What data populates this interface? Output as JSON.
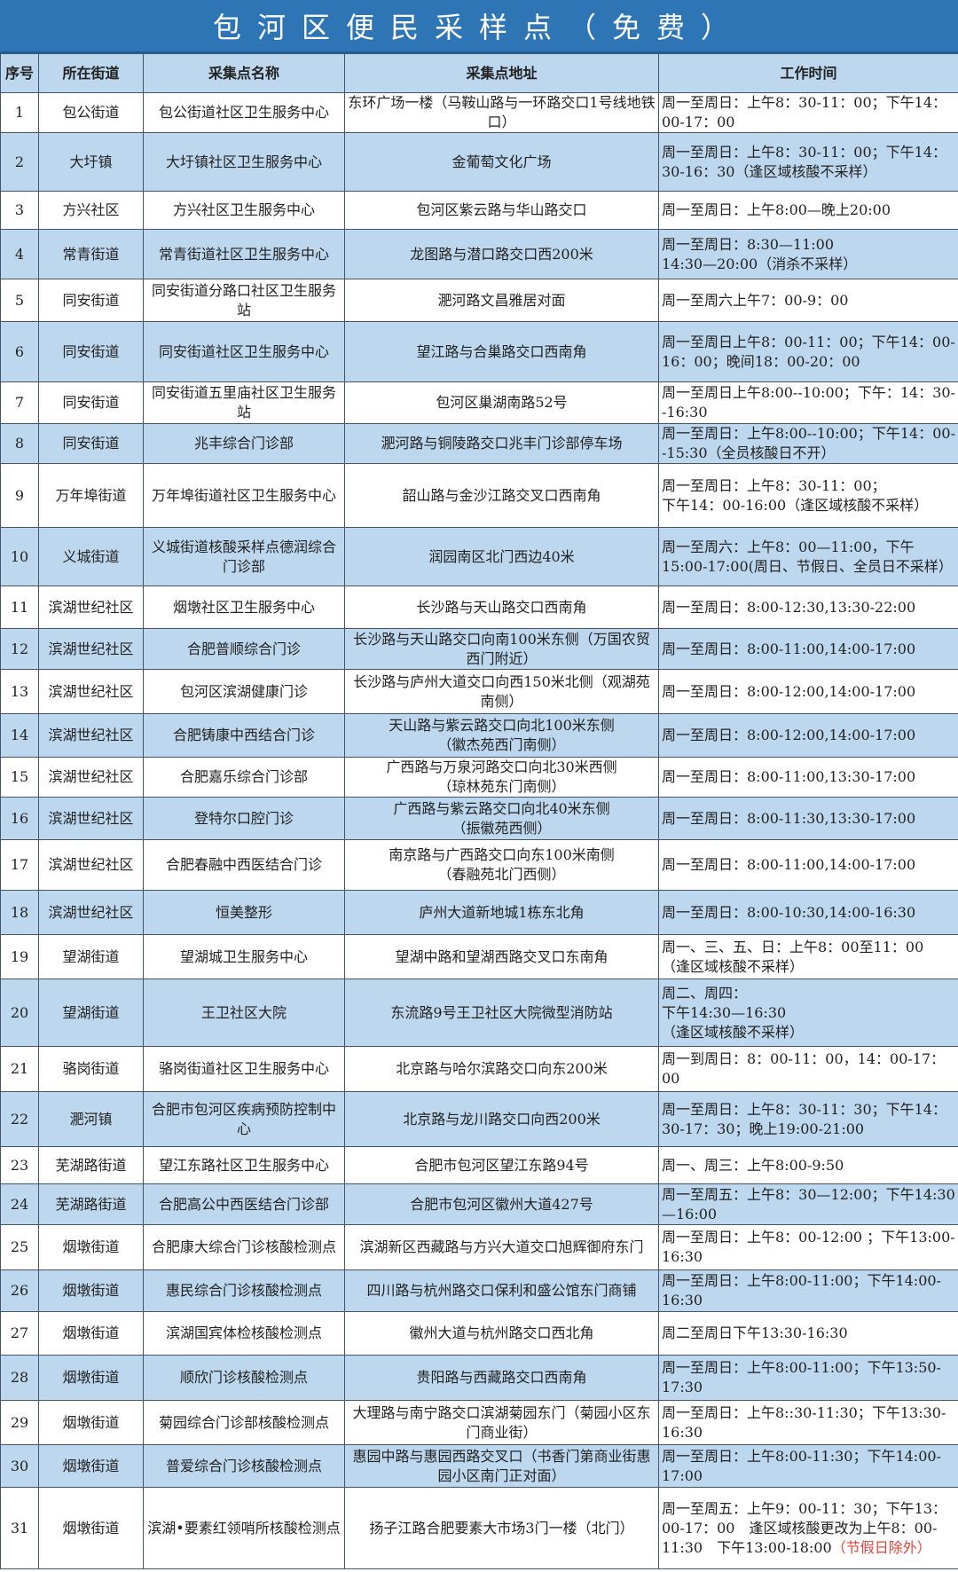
{
  "title": "包河区便民采样点（免费）",
  "colors": {
    "title_bg": "#2e75b6",
    "row_alt": "#bdd7ee",
    "note_red": "#e0443c"
  },
  "headers": [
    "序号",
    "所在街道",
    "采集点名称",
    "采集点地址",
    "工作时间"
  ],
  "rows": [
    {
      "no": "1",
      "street": "包公街道",
      "name": "包公街道社区卫生服务中心",
      "address": "东环广场一楼（马鞍山路与一环路交口1号线地铁口）",
      "time": "周一至周日：上午8：30-11：00；下午14：00-17：00"
    },
    {
      "no": "2",
      "street": "大圩镇",
      "name": "大圩镇社区卫生服务中心",
      "address": "金葡萄文化广场",
      "time": "周一至周日：上午8：30-11：00；下午14：30-16：30（逢区域核酸不采样）"
    },
    {
      "no": "3",
      "street": "方兴社区",
      "name": "方兴社区卫生服务中心",
      "address": "包河区紫云路与华山路交口",
      "time": "周一至周日：上午8:00—晚上20:00"
    },
    {
      "no": "4",
      "street": "常青街道",
      "name": "常青街道社区卫生服务中心",
      "address": "龙图路与潜口路交口西200米",
      "time": "周一至周日：8:30—11:00\n14:30—20:00（消杀不采样）"
    },
    {
      "no": "5",
      "street": "同安街道",
      "name": "同安街道分路口社区卫生服务站",
      "address": "淝河路文昌雅居对面",
      "time": "周一至周六上午7：00-9：00"
    },
    {
      "no": "6",
      "street": "同安街道",
      "name": "同安街道社区卫生服务中心",
      "address": "望江路与合巢路交口西南角",
      "time": "周一至周日上午8：00-11：00；下午14：00-16：00；晚间18：00-20：00"
    },
    {
      "no": "7",
      "street": "同安街道",
      "name": "同安街道五里庙社区卫生服务站",
      "address": "包河区巢湖南路52号",
      "time": "周一至周日上午8:00--10:00；下午：14：30--16:30"
    },
    {
      "no": "8",
      "street": "同安街道",
      "name": "兆丰综合门诊部",
      "address": "淝河路与铜陵路交口兆丰门诊部停车场",
      "time": "周一至周日：上午8:00--10:00；下午14：00--15:30（全员核酸日不开）"
    },
    {
      "no": "9",
      "street": "万年埠街道",
      "name": "万年埠街道社区卫生服务中心",
      "address": "韶山路与金沙江路交叉口西南角",
      "time": "周一至周日：上午8：30-11：00；\n下午14：00-16:00（逢区域核酸不采样）"
    },
    {
      "no": "10",
      "street": "义城街道",
      "name": "义城街道核酸采样点德润综合门诊部",
      "address": "润园南区北门西边40米",
      "time": "周一至周六：上午8：00—11:00，下午15:00-17:00(周日、节假日、全员日不采样）"
    },
    {
      "no": "11",
      "street": "滨湖世纪社区",
      "name": "烟墩社区卫生服务中心",
      "address": "长沙路与天山路交口西南角",
      "time": "周一至周日：8:00-12:30,13:30-22:00"
    },
    {
      "no": "12",
      "street": "滨湖世纪社区",
      "name": "合肥普顺综合门诊",
      "address": "长沙路与天山路交口向南100米东侧（万国农贸西门附近）",
      "time": "周一至周日：8:00-11:00,14:00-17:00"
    },
    {
      "no": "13",
      "street": "滨湖世纪社区",
      "name": "包河区滨湖健康门诊",
      "address": "长沙路与庐州大道交口向西150米北侧（观湖苑南侧）",
      "time": "周一至周日：8:00-12:00,14:00-17:00"
    },
    {
      "no": "14",
      "street": "滨湖世纪社区",
      "name": "合肥铸康中西结合门诊",
      "address": "天山路与紫云路交口向北100米东侧\n（徽杰苑西门南侧）",
      "time": "周一至周日：8:00-12:00,14:00-17:00"
    },
    {
      "no": "15",
      "street": "滨湖世纪社区",
      "name": "合肥嘉乐综合门诊部",
      "address": "广西路与万泉河路交口向北30米西侧\n（琼林苑东门南侧）",
      "time": "周一至周日：8:00-11:00,13:30-17:00"
    },
    {
      "no": "16",
      "street": "滨湖世纪社区",
      "name": "登特尔口腔门诊",
      "address": "广西路与紫云路交口向北40米东侧\n（振徽苑西侧）",
      "time": "周一至周日：8:00-11:30,13:30-17:00"
    },
    {
      "no": "17",
      "street": "滨湖世纪社区",
      "name": "合肥春融中西医结合门诊",
      "address": "南京路与广西路交口向东100米南侧\n（春融苑北门西侧）",
      "time": "周一至周日：8:00-11:00,14:00-17:00"
    },
    {
      "no": "18",
      "street": "滨湖世纪社区",
      "name": "恒美整形",
      "address": "庐州大道新地城1栋东北角",
      "time": "周一至周日：8:00-10:30,14:00-16:30"
    },
    {
      "no": "19",
      "street": "望湖街道",
      "name": "望湖城卫生服务中心",
      "address": "望湖中路和望湖西路交叉口东南角",
      "time": "周一、三、五、日：上午8：00至11：00\n（逢区域核酸不采样）"
    },
    {
      "no": "20",
      "street": "望湖街道",
      "name": "王卫社区大院",
      "address": "东流路9号王卫社区大院微型消防站",
      "time": "周二、周四：\n下午14:30—16:30\n（逢区域核酸不采样）"
    },
    {
      "no": "21",
      "street": "骆岗街道",
      "name": "骆岗街道社区卫生服务中心",
      "address": "北京路与哈尔滨路交口向东200米",
      "time": "周一到周日：8：00-11：00，14：00-17：00"
    },
    {
      "no": "22",
      "street": "淝河镇",
      "name": "合肥市包河区疾病预防控制中心",
      "address": "北京路与龙川路交口向西200米",
      "time": "周一至周日：上午8：30-11：30；下午14：30-17：30；晚上19:00-21:00"
    },
    {
      "no": "23",
      "street": "芜湖路街道",
      "name": "望江东路社区卫生服务中心",
      "address": "合肥市包河区望江东路94号",
      "time": "周一、周三：上午8:00-9:50"
    },
    {
      "no": "24",
      "street": "芜湖路街道",
      "name": "合肥高公中西医结合门诊部",
      "address": "合肥市包河区徽州大道427号",
      "time": "周一至周五：上午8：30—12:00；下午14:30—16:00"
    },
    {
      "no": "25",
      "street": "烟墩街道",
      "name": "合肥康大综合门诊核酸检测点",
      "address": "滨湖新区西藏路与方兴大道交口旭辉御府东门",
      "time": "周一至周日：上午8：00-12:00 ；下午13:00-16:30"
    },
    {
      "no": "26",
      "street": "烟墩街道",
      "name": "惠民综合门诊核酸检测点",
      "address": "四川路与杭州路交口保利和盛公馆东门商铺",
      "time": "周一至周日：上午8:00-11:00；下午14:00-16:30"
    },
    {
      "no": "27",
      "street": "烟墩街道",
      "name": "滨湖国宾体检核酸检测点",
      "address": "徽州大道与杭州路交口西北角",
      "time": "周二至周日下午13:30-16:30"
    },
    {
      "no": "28",
      "street": "烟墩街道",
      "name": "顺欣门诊核酸检测点",
      "address": "贵阳路与西藏路交口西南角",
      "time": "周一至周日：上午8:00-11:00；下午13:50-17:30"
    },
    {
      "no": "29",
      "street": "烟墩街道",
      "name": "菊园综合门诊部核酸检测点",
      "address": "大理路与南宁路交口滨湖菊园东门（菊园小区东门商业街）",
      "time": "周一至周日：上午8::30-11:30；下午13:30-16:30"
    },
    {
      "no": "30",
      "street": "烟墩街道",
      "name": "普爱综合门诊核酸检测点",
      "address": "惠园中路与惠园西路交叉口（书香门第商业街惠园小区南门正对面）",
      "time": "周一至周日：上午8:00-11:30；下午14:00-17:00"
    },
    {
      "no": "31",
      "street": "烟墩街道",
      "name": "滨湖•要素红领哨所核酸检测点",
      "address": "扬子江路合肥要素大市场3门一楼（北门）",
      "time": "周一至周五：上午9：00-11：30；下午13：00-17：00　逢区域核酸更改为上午8：00-11:30　下午13:00-18:00",
      "time_note": "（节假日除外）"
    }
  ]
}
